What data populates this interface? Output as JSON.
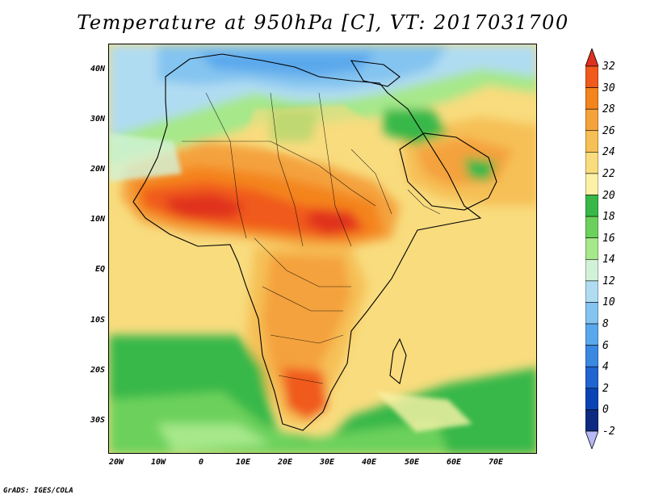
{
  "title": "Temperature at 950hPa [C], VT: 2017031700",
  "credit": "GrADS: IGES/COLA",
  "map": {
    "lat_labels": [
      "40N",
      "30N",
      "20N",
      "10N",
      "EQ",
      "10S",
      "20S",
      "30S"
    ],
    "lon_labels": [
      "20W",
      "10W",
      "0",
      "10E",
      "20E",
      "30E",
      "40E",
      "50E",
      "60E",
      "70E"
    ]
  },
  "colorbar": {
    "labels": [
      "32",
      "30",
      "28",
      "26",
      "24",
      "22",
      "20",
      "18",
      "16",
      "14",
      "12",
      "10",
      "8",
      "6",
      "4",
      "2",
      "0",
      "-2"
    ],
    "colors": [
      "#e0301e",
      "#f05a1c",
      "#f4841c",
      "#f4a23c",
      "#f6c056",
      "#f8dc7e",
      "#fbf2a8",
      "#38b848",
      "#6cd15c",
      "#a6e88a",
      "#d2f2d8",
      "#b0dcf2",
      "#84c4f0",
      "#5aa8ec",
      "#3a88e0",
      "#2064d0",
      "#0a44b4",
      "#0c2a80",
      "#b8b8f6"
    ]
  }
}
